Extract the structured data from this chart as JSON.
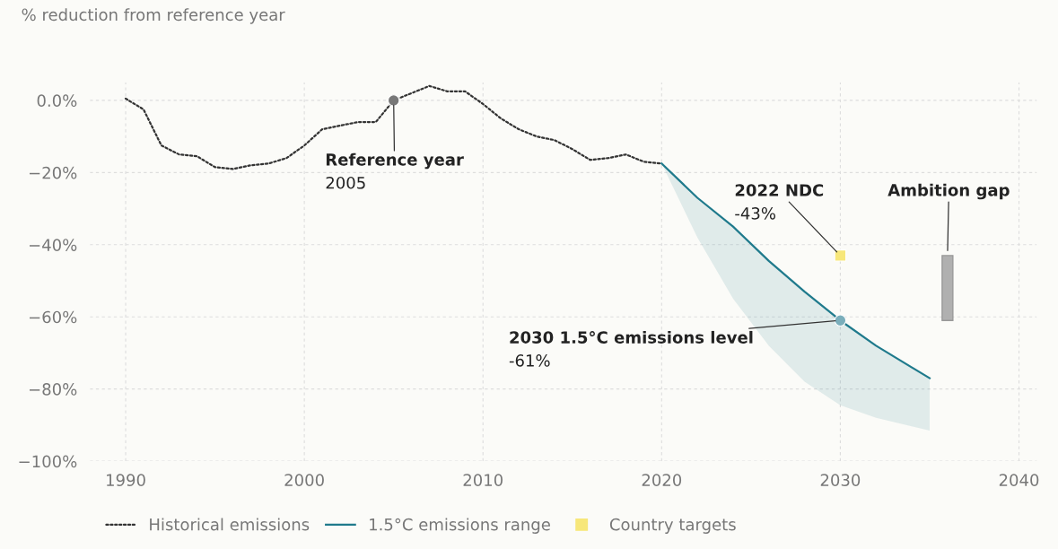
{
  "chart_data": {
    "type": "line",
    "ylabel": "% reduction from reference year",
    "xlim": [
      1988,
      2041
    ],
    "ylim": [
      -100,
      5
    ],
    "xticks": [
      1990,
      2000,
      2010,
      2020,
      2030,
      2040
    ],
    "yticks": [
      {
        "value": 0,
        "label": "0.0%"
      },
      {
        "value": -20,
        "label": "−20%"
      },
      {
        "value": -40,
        "label": "−40%"
      },
      {
        "value": -60,
        "label": "−60%"
      },
      {
        "value": -80,
        "label": "−80%"
      },
      {
        "value": -100,
        "label": "−100%"
      }
    ],
    "grid": true,
    "legend": "bottom",
    "series": [
      {
        "name": "Historical emissions",
        "line_style": "dotted",
        "color": "#333333",
        "x": [
          1990,
          1991,
          1992,
          1993,
          1994,
          1995,
          1996,
          1997,
          1998,
          1999,
          2000,
          2001,
          2002,
          2003,
          2004,
          2005,
          2006,
          2007,
          2008,
          2009,
          2010,
          2011,
          2012,
          2013,
          2014,
          2015,
          2016,
          2017,
          2018,
          2019,
          2020
        ],
        "values": [
          0.5,
          -2.5,
          -12.5,
          -15,
          -15.5,
          -18.5,
          -19,
          -18,
          -17.5,
          -16,
          -12.5,
          -8,
          -7,
          -6,
          -6,
          0,
          2,
          4,
          2.5,
          2.5,
          -1,
          -5,
          -8,
          -10,
          -11,
          -13.5,
          -16.5,
          -16,
          -15,
          -17,
          -17.5
        ]
      },
      {
        "type": "scatter",
        "color": "#777777",
        "x": [
          2005
        ],
        "values": [
          0
        ]
      },
      {
        "name": "1.5°C emissions range",
        "type": "line",
        "line_style": "solid",
        "color": "#1f7a8c",
        "x": [
          2020,
          2022,
          2024,
          2026,
          2028,
          2030,
          2032,
          2035
        ],
        "values": [
          -17.5,
          -27,
          -35,
          -44.5,
          -53,
          -61,
          -68,
          -77
        ],
        "lower": [
          -17.5,
          -38,
          -55,
          -68,
          -78,
          -84.5,
          -88,
          -91.5
        ],
        "upper": [
          -17.5,
          -27,
          -35,
          -44.5,
          -53,
          -61,
          -68,
          -77
        ]
      },
      {
        "type": "scatter",
        "color": "#7aaebb",
        "x": [
          2030
        ],
        "values": [
          -61
        ]
      },
      {
        "name": "Country targets",
        "type": "scatter",
        "marker": "square",
        "color": "#f7e77a",
        "x": [
          2030
        ],
        "values": [
          -43
        ]
      },
      {
        "type": "bar",
        "color": "#b0b0b0",
        "x": [
          2036
        ],
        "base": [
          -61
        ],
        "values": [
          18
        ]
      }
    ],
    "annotations": [
      {
        "text": "Reference year\n2005",
        "x": 2005,
        "y": 0
      },
      {
        "text": "2022 NDC\n-43%",
        "x": 2030,
        "y": -43
      },
      {
        "text": "2030 1.5°C emissions level\n-61%",
        "x": 2030,
        "y": -61
      },
      {
        "text": "Ambition gap",
        "x": 2036,
        "y": -43
      }
    ]
  }
}
